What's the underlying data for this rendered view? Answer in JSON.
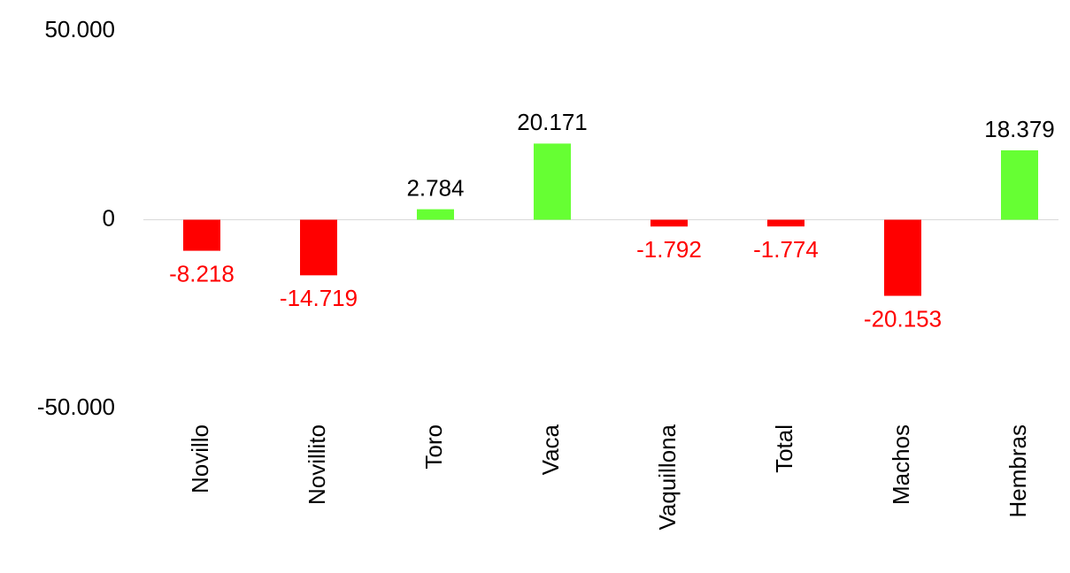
{
  "chart_data": {
    "type": "bar",
    "categories": [
      "Novillo",
      "Novillito",
      "Toro",
      "Vaca",
      "Vaquillona",
      "Total",
      "Machos",
      "Hembras"
    ],
    "values": [
      -8218,
      -14719,
      2784,
      20171,
      -1792,
      -1774,
      -20153,
      18379
    ],
    "value_labels": [
      "-8.218",
      "-14.719",
      "2.784",
      "20.171",
      "-1.792",
      "-1.774",
      "-20.153",
      "18.379"
    ],
    "colors": [
      "#ff0000",
      "#ff0000",
      "#66ff33",
      "#66ff33",
      "#ff0000",
      "#ff0000",
      "#ff0000",
      "#66ff33"
    ],
    "label_colors": [
      "#ff0000",
      "#ff0000",
      "#000000",
      "#000000",
      "#ff0000",
      "#ff0000",
      "#ff0000",
      "#000000"
    ],
    "ylim": [
      -50000,
      50000
    ],
    "yticks": [
      {
        "value": 50000,
        "label": "50.000"
      },
      {
        "value": 0,
        "label": "0"
      },
      {
        "value": -50000,
        "label": "-50.000"
      }
    ],
    "grid": false
  }
}
